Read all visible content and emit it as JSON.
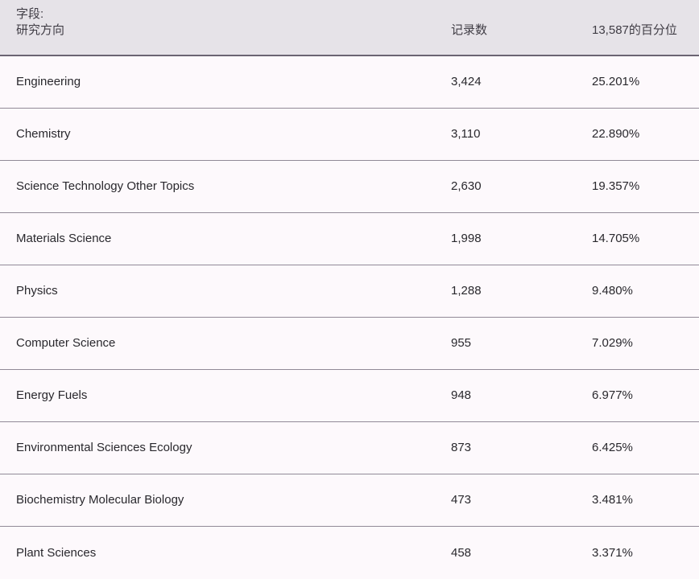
{
  "table": {
    "header": {
      "field_label": "字段:",
      "field_name": "研究方向",
      "records_label": "记录数",
      "percentile_label": "13,587的百分位"
    },
    "rows": [
      {
        "name": "Engineering",
        "records": "3,424",
        "percentile": "25.201%"
      },
      {
        "name": "Chemistry",
        "records": "3,110",
        "percentile": "22.890%"
      },
      {
        "name": "Science Technology Other Topics",
        "records": "2,630",
        "percentile": "19.357%"
      },
      {
        "name": "Materials Science",
        "records": "1,998",
        "percentile": "14.705%"
      },
      {
        "name": "Physics",
        "records": "1,288",
        "percentile": "9.480%"
      },
      {
        "name": "Computer Science",
        "records": "955",
        "percentile": "7.029%"
      },
      {
        "name": "Energy Fuels",
        "records": "948",
        "percentile": "6.977%"
      },
      {
        "name": "Environmental Sciences Ecology",
        "records": "873",
        "percentile": "6.425%"
      },
      {
        "name": "Biochemistry Molecular Biology",
        "records": "473",
        "percentile": "3.481%"
      },
      {
        "name": "Plant Sciences",
        "records": "458",
        "percentile": "3.371%"
      }
    ],
    "colors": {
      "header_bg": "#e6e3e8",
      "header_border": "#6b6472",
      "row_bg": "#fdf9fc",
      "row_separator": "#918a97",
      "row_text": "#29282d",
      "header_text": "#403d45"
    }
  }
}
